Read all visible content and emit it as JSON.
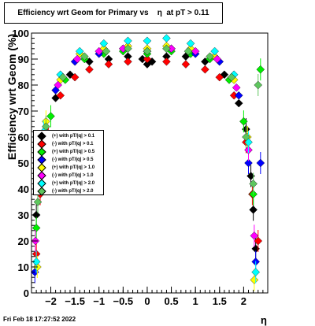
{
  "footer": {
    "timestamp": "Fri Feb 18 17:27:52 2022"
  },
  "chart_data": {
    "type": "scatter",
    "title": "Efficiency wrt Geom for Primary vs    η  at pT > 0.11",
    "xlabel": "η",
    "ylabel": "Efficiency wrt Geom (%)",
    "xlim": [
      -2.4,
      2.5
    ],
    "ylim": [
      0,
      100
    ],
    "xticks": [
      {
        "value": -2,
        "label": "−2"
      },
      {
        "value": -1.5,
        "label": "−1.5"
      },
      {
        "value": -1,
        "label": "−1"
      },
      {
        "value": -0.5,
        "label": "−0.5"
      },
      {
        "value": 0,
        "label": "0"
      },
      {
        "value": 0.5,
        "label": "0.5"
      },
      {
        "value": 1,
        "label": "1"
      },
      {
        "value": 1.5,
        "label": "1.5"
      },
      {
        "value": 2,
        "label": "2"
      }
    ],
    "yticks": [
      {
        "value": 0,
        "label": "0"
      },
      {
        "value": 10,
        "label": "10"
      },
      {
        "value": 20,
        "label": "20"
      },
      {
        "value": 30,
        "label": "30"
      },
      {
        "value": 40,
        "label": "40"
      },
      {
        "value": 50,
        "label": "50"
      },
      {
        "value": 60,
        "label": "60"
      },
      {
        "value": 70,
        "label": "70"
      },
      {
        "value": 80,
        "label": "80"
      },
      {
        "value": 90,
        "label": "90"
      },
      {
        "value": 100,
        "label": "100"
      }
    ],
    "grid": false,
    "legend_position": "left-middle",
    "series": [
      {
        "name": "(+) with pT/|q| > 0.1",
        "color": "#000000",
        "points": [
          [
            -2.3,
            30
          ],
          [
            -2.25,
            45
          ],
          [
            -2.1,
            62
          ],
          [
            -1.9,
            75
          ],
          [
            -1.6,
            84
          ],
          [
            -1.2,
            89
          ],
          [
            -0.8,
            90
          ],
          [
            -0.4,
            91
          ],
          [
            -0.1,
            90
          ],
          [
            0,
            88
          ],
          [
            0.1,
            89
          ],
          [
            0.4,
            91
          ],
          [
            0.8,
            91
          ],
          [
            1.2,
            89
          ],
          [
            1.6,
            84
          ],
          [
            1.9,
            73
          ],
          [
            2.05,
            63
          ],
          [
            2.15,
            45
          ],
          [
            2.2,
            32
          ],
          [
            2.25,
            17
          ]
        ]
      },
      {
        "name": "(-) with pT/|q| > 0.1",
        "color": "#ff0000",
        "points": [
          [
            -2.3,
            15
          ],
          [
            -2.22,
            38
          ],
          [
            -2.05,
            60
          ],
          [
            -1.8,
            76
          ],
          [
            -1.5,
            83
          ],
          [
            -1.2,
            86
          ],
          [
            -0.8,
            88
          ],
          [
            -0.4,
            89
          ],
          [
            0,
            90
          ],
          [
            0.4,
            89
          ],
          [
            0.8,
            88
          ],
          [
            1.2,
            86
          ],
          [
            1.5,
            83
          ],
          [
            1.8,
            76
          ],
          [
            2.05,
            58
          ],
          [
            2.18,
            38
          ],
          [
            2.3,
            20
          ]
        ]
      },
      {
        "name": "(+) with pT/|q| > 0.5",
        "color": "#00ee00",
        "points": [
          [
            -2.3,
            25
          ],
          [
            -2.2,
            50
          ],
          [
            -2.0,
            68
          ],
          [
            -1.7,
            82
          ],
          [
            -1.3,
            90
          ],
          [
            -0.9,
            92
          ],
          [
            -0.5,
            93
          ],
          [
            0,
            92
          ],
          [
            0.5,
            93
          ],
          [
            0.9,
            92
          ],
          [
            1.3,
            90
          ],
          [
            1.7,
            82
          ],
          [
            2.0,
            66
          ],
          [
            2.2,
            38
          ],
          [
            2.35,
            86
          ]
        ]
      },
      {
        "name": "(-) with pT/|q| > 0.5",
        "color": "#0000ff",
        "points": [
          [
            -2.33,
            8
          ],
          [
            -2.2,
            55
          ],
          [
            -1.9,
            78
          ],
          [
            -1.5,
            89
          ],
          [
            -1.0,
            92
          ],
          [
            -0.5,
            94
          ],
          [
            0,
            93
          ],
          [
            0.5,
            94
          ],
          [
            1.0,
            92
          ],
          [
            1.5,
            89
          ],
          [
            1.9,
            76
          ],
          [
            2.1,
            50
          ],
          [
            2.25,
            12
          ],
          [
            2.35,
            50
          ]
        ]
      },
      {
        "name": "(+) with pT/|q| > 1.0",
        "color": "#ffff00",
        "points": [
          [
            -2.28,
            10
          ],
          [
            -2.1,
            66
          ],
          [
            -1.8,
            82
          ],
          [
            -1.4,
            92
          ],
          [
            -0.9,
            94
          ],
          [
            -0.4,
            95
          ],
          [
            0,
            94
          ],
          [
            0.4,
            95
          ],
          [
            0.9,
            94
          ],
          [
            1.4,
            91
          ],
          [
            1.8,
            82
          ],
          [
            2.08,
            60
          ],
          [
            2.22,
            5
          ]
        ]
      },
      {
        "name": "(-) with pT/|q| > 1.0",
        "color": "#ff00ff",
        "points": [
          [
            -2.32,
            20
          ],
          [
            -2.15,
            58
          ],
          [
            -1.85,
            80
          ],
          [
            -1.45,
            90
          ],
          [
            -1.0,
            93
          ],
          [
            -0.5,
            94
          ],
          [
            0,
            93
          ],
          [
            0.5,
            94
          ],
          [
            1.0,
            93
          ],
          [
            1.45,
            90
          ],
          [
            1.85,
            79
          ],
          [
            2.1,
            55
          ],
          [
            2.22,
            22
          ]
        ]
      },
      {
        "name": "(+) with pT/|q| > 2.0",
        "color": "#00ffff",
        "points": [
          [
            -2.3,
            12
          ],
          [
            -2.15,
            62
          ],
          [
            -1.8,
            84
          ],
          [
            -1.4,
            93
          ],
          [
            -0.9,
            96
          ],
          [
            -0.4,
            97
          ],
          [
            0,
            97
          ],
          [
            0.4,
            98
          ],
          [
            0.9,
            96
          ],
          [
            1.4,
            93
          ],
          [
            1.8,
            84
          ],
          [
            2.1,
            58
          ],
          [
            2.25,
            8
          ]
        ]
      },
      {
        "name": "(-) with pT/|q| > 2.0",
        "color": "#5ec65e",
        "points": [
          [
            -2.27,
            35
          ],
          [
            -2.1,
            64
          ],
          [
            -1.75,
            83
          ],
          [
            -1.3,
            91
          ],
          [
            -0.85,
            93
          ],
          [
            -0.4,
            94
          ],
          [
            0,
            93
          ],
          [
            0.4,
            94
          ],
          [
            0.85,
            93
          ],
          [
            1.3,
            91
          ],
          [
            1.75,
            83
          ],
          [
            2.05,
            60
          ],
          [
            2.2,
            42
          ],
          [
            2.3,
            80
          ]
        ]
      }
    ]
  }
}
